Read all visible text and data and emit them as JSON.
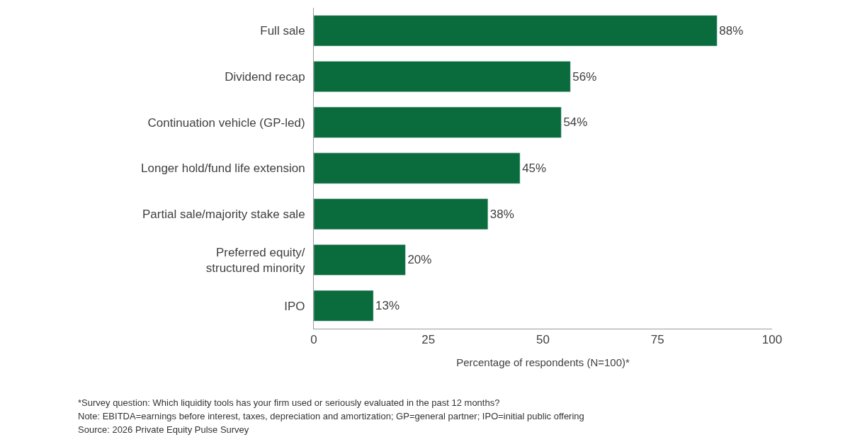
{
  "chart_data": {
    "type": "bar",
    "orientation": "horizontal",
    "categories": [
      "Full sale",
      "Dividend recap",
      "Continuation vehicle (GP-led)",
      "Longer hold/fund life extension",
      "Partial sale/majority stake sale",
      "Preferred equity/\nstructured minority",
      "IPO"
    ],
    "values": [
      88,
      56,
      54,
      45,
      38,
      20,
      13
    ],
    "value_labels": [
      "88%",
      "56%",
      "54%",
      "45%",
      "38%",
      "20%",
      "13%"
    ],
    "color": "#0a6b3d",
    "xlim": [
      0,
      100
    ],
    "xticks": [
      0,
      25,
      50,
      75,
      100
    ],
    "xlabel": "Percentage of respondents (N=100)*",
    "annotations": [
      "*Survey question: Which liquidity tools has your firm used or seriously evaluated in the past 12 months?",
      "Note: EBITDA=earnings before interest, taxes, depreciation and amortization; GP=general partner; IPO=initial public offering",
      "Source: 2026 Private Equity Pulse Survey"
    ]
  }
}
